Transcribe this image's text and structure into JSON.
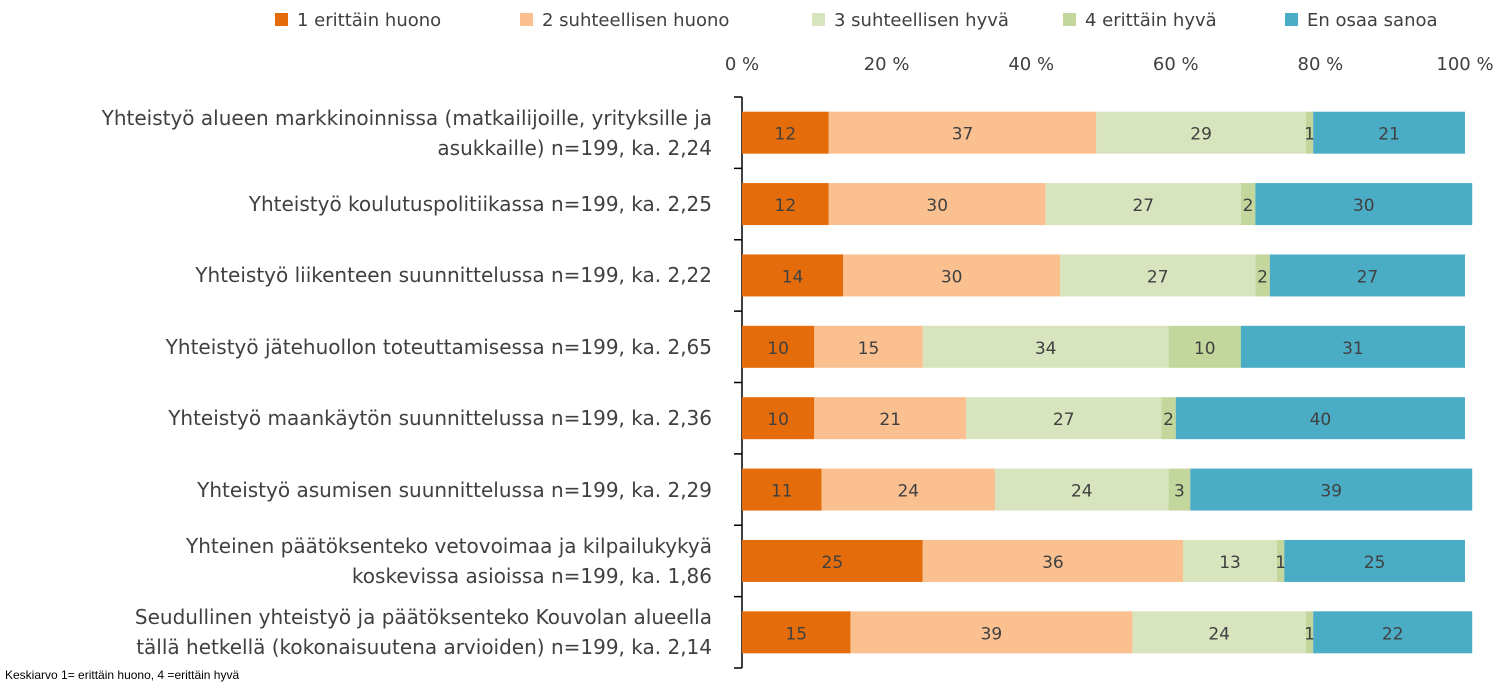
{
  "chart_data": {
    "type": "stacked_barh",
    "categories": [
      "Yhteistyö alueen markkinoinnissa (matkailijoille, yrityksille ja\nasukkaille) n=199, ka. 2,24",
      "Yhteistyö koulutuspolitiikassa n=199, ka. 2,25",
      "Yhteistyö liikenteen suunnittelussa n=199, ka. 2,22",
      "Yhteistyö jätehuollon toteuttamisessa n=199, ka. 2,65",
      "Yhteistyö maankäytön suunnittelussa n=199, ka. 2,36",
      "Yhteistyö asumisen suunnittelussa n=199, ka. 2,29",
      "Yhteinen päätöksenteko vetovoimaa ja kilpailukykyä\nkoskevissa asioissa n=199, ka. 1,86",
      "Seudullinen yhteistyö ja päätöksenteko Kouvolan alueella\ntällä hetkellä (kokonaisuutena arvioiden) n=199, ka. 2,14"
    ],
    "series": [
      {
        "name": "1 erittäin huono",
        "color": "#e46c0a",
        "values": [
          12,
          12,
          14,
          10,
          10,
          11,
          25,
          15
        ]
      },
      {
        "name": "2 suhteellisen huono",
        "color": "#fac090",
        "values": [
          37,
          30,
          30,
          15,
          21,
          24,
          36,
          39
        ]
      },
      {
        "name": "3 suhteellisen hyvä",
        "color": "#d7e4bd",
        "values": [
          29,
          27,
          27,
          34,
          27,
          24,
          13,
          24
        ]
      },
      {
        "name": "4 erittäin hyvä",
        "color": "#c3d69b",
        "values": [
          1,
          2,
          2,
          10,
          2,
          3,
          1,
          1
        ]
      },
      {
        "name": "En osaa sanoa",
        "color": "#4bacc6",
        "values": [
          21,
          30,
          27,
          31,
          40,
          39,
          25,
          22
        ]
      }
    ],
    "xlim": [
      0,
      100
    ],
    "xticks": [
      {
        "value": 0,
        "label": "0 %"
      },
      {
        "value": 20,
        "label": "20 %"
      },
      {
        "value": 40,
        "label": "40 %"
      },
      {
        "value": 60,
        "label": "60 %"
      },
      {
        "value": 80,
        "label": "80 %"
      },
      {
        "value": 100,
        "label": "100 %"
      }
    ],
    "legend": "top",
    "note": "Keskiarvo 1= erittäin huono, 4 =erittäin hyvä"
  }
}
